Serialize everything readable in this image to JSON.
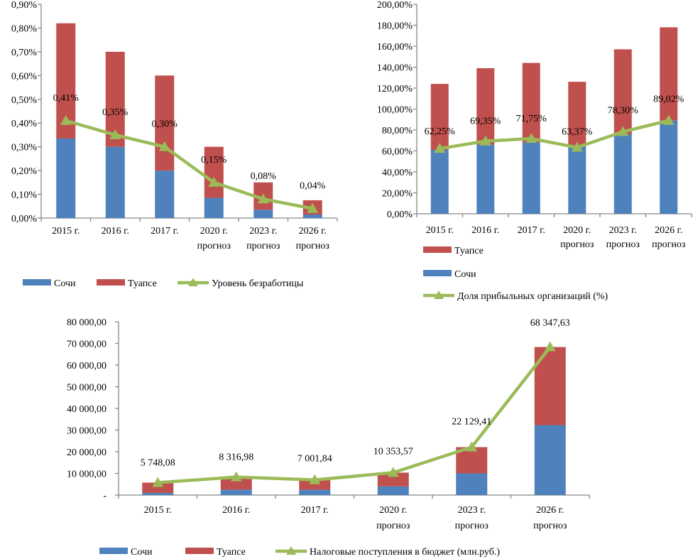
{
  "colors": {
    "sochi": "#4F81BD",
    "tuapse": "#C0504D",
    "line": "#9BBB59"
  },
  "chart_data": [
    {
      "id": "unemployment",
      "type": "bar",
      "stacked": true,
      "title": "",
      "xlabel": "",
      "ylabel": "",
      "categories": [
        [
          "2015 г."
        ],
        [
          "2016 г."
        ],
        [
          "2017 г."
        ],
        [
          "2020 г.",
          "прогноз"
        ],
        [
          "2023 г.",
          "прогноз"
        ],
        [
          "2026 г.",
          "прогноз"
        ]
      ],
      "ylim": [
        0,
        0.9
      ],
      "yticks": [
        0,
        0.1,
        0.2,
        0.3,
        0.4,
        0.5,
        0.6,
        0.7,
        0.8,
        0.9
      ],
      "ytick_labels": [
        "0,00%",
        "0,10%",
        "0,20%",
        "0,30%",
        "0,40%",
        "0,50%",
        "0,60%",
        "0,70%",
        "0,80%",
        "0,90%"
      ],
      "series": [
        {
          "name": "Сочи",
          "kind": "bar",
          "color_key": "sochi",
          "values": [
            0.335,
            0.3,
            0.2,
            0.085,
            0.035,
            0.015
          ]
        },
        {
          "name": "Туапсе",
          "kind": "bar",
          "color_key": "tuapse",
          "values": [
            0.485,
            0.4,
            0.4,
            0.215,
            0.115,
            0.06
          ]
        },
        {
          "name": "Уровень безработицы",
          "kind": "line",
          "color_key": "line",
          "values": [
            0.41,
            0.35,
            0.3,
            0.15,
            0.08,
            0.04
          ],
          "labels": [
            "0,41%",
            "0,35%",
            "0,30%",
            "0,15%",
            "0,08%",
            "0,04%"
          ]
        }
      ],
      "legend": {
        "placement": "bottom",
        "items": [
          "Сочи",
          "Туапсе",
          "Уровень безработицы"
        ]
      },
      "grid": false
    },
    {
      "id": "profitable_orgs",
      "type": "bar",
      "stacked": true,
      "title": "",
      "xlabel": "",
      "ylabel": "",
      "categories": [
        [
          "2015 г."
        ],
        [
          "2016 г."
        ],
        [
          "2017 г."
        ],
        [
          "2020 г.",
          "прогноз"
        ],
        [
          "2023 г.",
          "прогноз"
        ],
        [
          "2026 г.",
          "прогноз"
        ]
      ],
      "ylim": [
        0,
        200
      ],
      "yticks": [
        0,
        20,
        40,
        60,
        80,
        100,
        120,
        140,
        160,
        180,
        200
      ],
      "ytick_labels": [
        "0,00%",
        "20,00%",
        "40,00%",
        "60,00%",
        "80,00%",
        "100,00%",
        "120,00%",
        "140,00%",
        "160,00%",
        "180,00%",
        "200,00%"
      ],
      "series": [
        {
          "name": "Сочи",
          "kind": "bar",
          "color_key": "sochi",
          "values": [
            61,
            66,
            68,
            64,
            76,
            89
          ]
        },
        {
          "name": "Туапсе",
          "kind": "bar",
          "color_key": "tuapse",
          "values": [
            63,
            73,
            76,
            62,
            81,
            89
          ]
        },
        {
          "name": "Доля прибыльных  организаций  (%)",
          "kind": "line",
          "color_key": "line",
          "values": [
            62.25,
            69.35,
            71.75,
            63.37,
            78.3,
            89.02
          ],
          "labels": [
            "62,25%",
            "69,35%",
            "71,75%",
            "63,37%",
            "78,30%",
            "89,02%"
          ]
        }
      ],
      "legend": {
        "placement": "bottom-left",
        "items": [
          "Туапсе",
          "Сочи",
          "Доля прибыльных  организаций  (%)"
        ]
      },
      "grid": false
    },
    {
      "id": "tax_revenue",
      "type": "bar",
      "stacked": true,
      "title": "",
      "xlabel": "",
      "ylabel": "",
      "categories": [
        [
          "2015 г."
        ],
        [
          "2016 г."
        ],
        [
          "2017 г."
        ],
        [
          "2020 г.",
          "прогноз"
        ],
        [
          "2023 г.",
          "прогноз"
        ],
        [
          "2026 г.",
          "прогноз"
        ]
      ],
      "ylim": [
        0,
        80000
      ],
      "yticks": [
        0,
        10000,
        20000,
        30000,
        40000,
        50000,
        60000,
        70000,
        80000
      ],
      "ytick_labels": [
        "-",
        "10 000,00",
        "20 000,00",
        "30 000,00",
        "40 000,00",
        "50 000,00",
        "60 000,00",
        "70 000,00",
        "80 000,00"
      ],
      "series": [
        {
          "name": "Сочи",
          "kind": "bar",
          "color_key": "sochi",
          "values": [
            1000,
            2500,
            2500,
            4000,
            10000,
            32300
          ]
        },
        {
          "name": "Туапсе",
          "kind": "bar",
          "color_key": "tuapse",
          "values": [
            4748,
            5817,
            4502,
            6354,
            12129,
            36048
          ]
        },
        {
          "name": "Налоговые поступления  в бюджет (млн.руб.)",
          "kind": "line",
          "color_key": "line",
          "values": [
            5748.08,
            8316.98,
            7001.84,
            10353.57,
            22129.41,
            68347.63
          ],
          "labels": [
            "5 748,08",
            "8 316,98",
            "7 001,84",
            "10 353,57",
            "22 129,41",
            "68 347,63"
          ]
        }
      ],
      "legend": {
        "placement": "bottom",
        "items": [
          "Сочи",
          "Туапсе",
          "Налоговые поступления  в бюджет (млн.руб.)"
        ]
      },
      "grid": false
    }
  ]
}
